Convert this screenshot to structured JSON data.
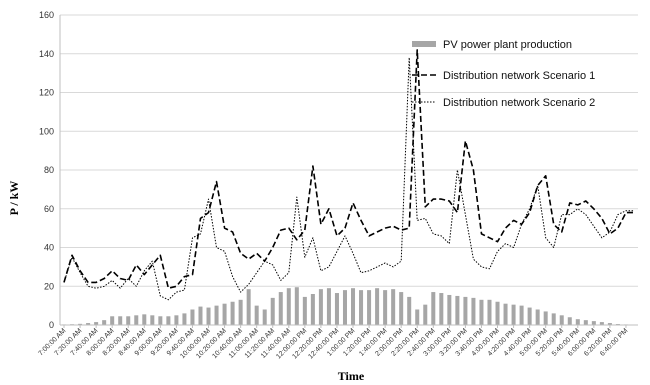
{
  "chart_data": {
    "type": "bar",
    "xlabel": "Time",
    "ylabel": "P / kW",
    "ylim": [
      0,
      160
    ],
    "yticks": [
      0,
      20,
      40,
      60,
      80,
      100,
      120,
      140,
      160
    ],
    "grid": "horizontal",
    "legend_position": "top-right",
    "x_tick_labels": [
      "7:00:00 AM",
      "7:20:00 AM",
      "7:40:00 AM",
      "8:00:00 AM",
      "8:20:00 AM",
      "8:40:00 AM",
      "9:00:00 AM",
      "9:20:00 AM",
      "9:40:00 AM",
      "10:00:00 AM",
      "10:20:00 AM",
      "10:40:00 AM",
      "11:00:00 AM",
      "11:20:00 AM",
      "11:40:00 AM",
      "12:00:00 PM",
      "12:20:00 PM",
      "12:40:00 PM",
      "1:00:00 PM",
      "1:20:00 PM",
      "1:40:00 PM",
      "2:00:00 PM",
      "2:20:00 PM",
      "2:40:00 PM",
      "3:00:00 PM",
      "3:20:00 PM",
      "3:40:00 PM",
      "4:00:00 PM",
      "4:20:00 PM",
      "4:40:00 PM",
      "5:00:00 PM",
      "5:20:00 PM",
      "5:40:00 PM",
      "6:00:00 PM",
      "6:20:00 PM",
      "6:40:00 PM"
    ],
    "points_per_tick": 2,
    "series": [
      {
        "name": "PV power plant production",
        "kind": "bar",
        "color": "#a6a6a6",
        "values": [
          0.3,
          0.4,
          0.6,
          1,
          1.5,
          2.5,
          4.5,
          4.5,
          4.5,
          5,
          5.5,
          5,
          4.5,
          4.5,
          5,
          6,
          8,
          9.5,
          9,
          10,
          11,
          12,
          13,
          18.5,
          10,
          8,
          14,
          17,
          19,
          19.5,
          14.5,
          16,
          18.5,
          19,
          16.5,
          18,
          19,
          18,
          18,
          19,
          18,
          18.5,
          17,
          14.5,
          8,
          10.5,
          17,
          16.5,
          15.5,
          15,
          14.5,
          14,
          13,
          13,
          12,
          11,
          10.5,
          10,
          9,
          8,
          7,
          6,
          5,
          4,
          3,
          2.5,
          2,
          1.5,
          1,
          0.5,
          0.3,
          0.2
        ]
      },
      {
        "name": "Distribution network Scenario 1",
        "kind": "line",
        "dash": "dashed",
        "color": "#000000",
        "values": [
          22,
          36,
          28,
          22,
          22,
          24,
          28,
          24,
          23,
          31,
          26,
          31,
          36,
          19,
          20,
          25,
          26,
          55,
          58,
          74,
          50,
          48,
          37,
          34,
          37,
          33,
          40,
          49,
          50,
          44,
          49,
          82,
          52,
          60,
          46,
          50,
          63,
          54,
          46,
          48,
          50,
          51,
          49,
          50,
          142,
          61,
          65,
          65,
          64,
          58,
          95,
          80,
          47,
          45,
          43,
          50,
          54,
          52,
          58,
          72,
          77,
          52,
          48,
          63,
          62,
          64,
          60,
          55,
          47,
          50,
          58,
          58
        ]
      },
      {
        "name": "Distribution network Scenario 2",
        "kind": "line",
        "dash": "dotted",
        "color": "#000000",
        "values": [
          22,
          35,
          27,
          20,
          19,
          20,
          23,
          19,
          24,
          20,
          28,
          33,
          15,
          13,
          17,
          18,
          45,
          47,
          65,
          40,
          38,
          25,
          17,
          21,
          27,
          33,
          31,
          23,
          27,
          66,
          35,
          45,
          28,
          30,
          38,
          46,
          37,
          27,
          28,
          30,
          32,
          30,
          33,
          138,
          54,
          55,
          47,
          46,
          42,
          80,
          57,
          34,
          30,
          29,
          38,
          42,
          40,
          52,
          60,
          72,
          45,
          40,
          57,
          57,
          60,
          57,
          51,
          45,
          48,
          57,
          59,
          59
        ]
      }
    ]
  }
}
